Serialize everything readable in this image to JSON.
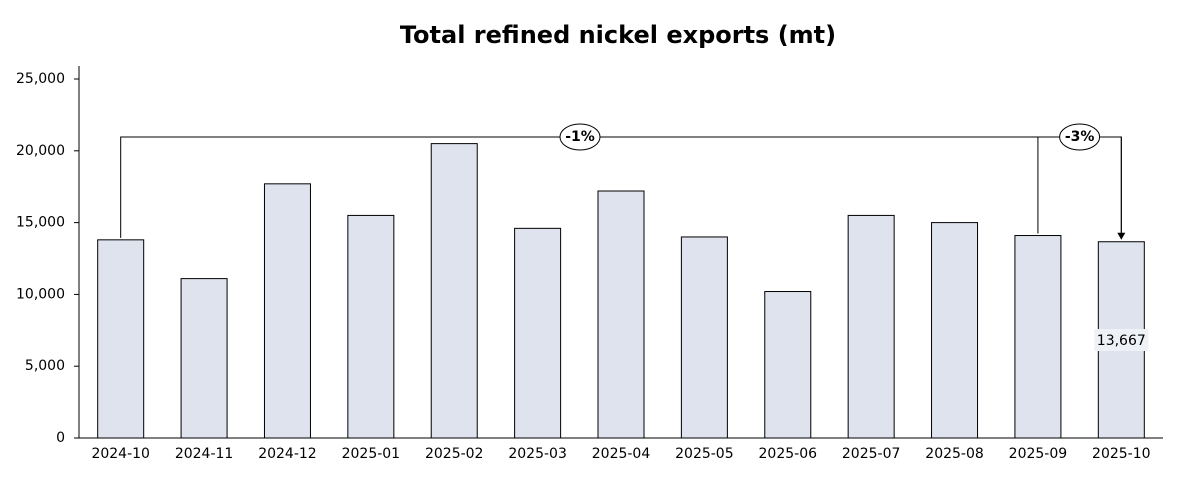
{
  "chart_data": {
    "type": "bar",
    "title": "Total refined nickel exports (mt)",
    "categories": [
      "2024-10",
      "2024-11",
      "2024-12",
      "2025-01",
      "2025-02",
      "2025-03",
      "2025-04",
      "2025-05",
      "2025-06",
      "2025-07",
      "2025-08",
      "2025-09",
      "2025-10"
    ],
    "values": [
      13800,
      11100,
      17700,
      15500,
      20500,
      14600,
      17200,
      14000,
      10200,
      15500,
      15000,
      14100,
      13667
    ],
    "value_labels": [
      null,
      null,
      null,
      null,
      null,
      null,
      null,
      null,
      null,
      null,
      null,
      null,
      "13,667"
    ],
    "color": "#dee3ed",
    "ylim": [
      0,
      25000
    ],
    "yticks": [
      0,
      {
        "value": 5000,
        "label": "5,000"
      },
      {
        "value": 10000,
        "label": "10,000"
      },
      {
        "value": 15000,
        "label": "15,000"
      },
      {
        "value": 20000,
        "label": "20,000"
      },
      {
        "value": 25000,
        "label": "25,000"
      }
    ],
    "grid": false,
    "annotations": [
      "-1%",
      "-3%"
    ]
  }
}
